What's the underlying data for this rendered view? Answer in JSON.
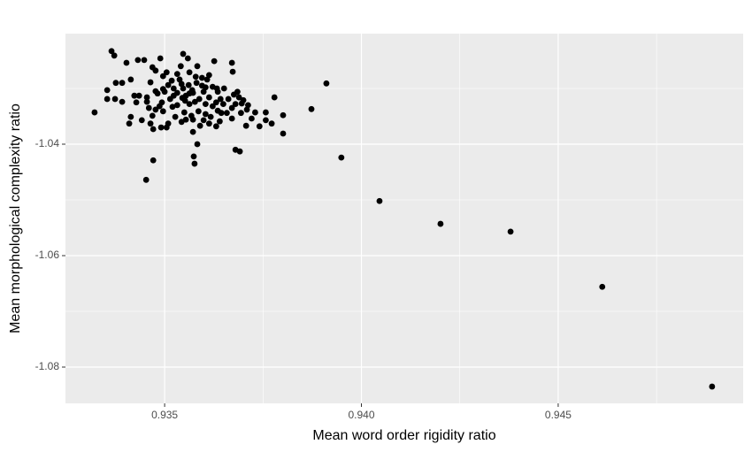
{
  "chart_data": {
    "type": "scatter",
    "x_label": "Mean word order rigidity ratio",
    "y_label": "Mean morphological complexity ratio",
    "color": "#000000",
    "xlim": [
      0.93248,
      0.9497
    ],
    "ylim": [
      -1.08651,
      -1.02016
    ],
    "xticks": [
      {
        "value": 0.935,
        "label": "0.935"
      },
      {
        "value": 0.94,
        "label": "0.940"
      },
      {
        "value": 0.945,
        "label": "0.945"
      }
    ],
    "yticks": [
      -1.04,
      -1.06,
      -1.08
    ],
    "grid": true,
    "x": [
      0.93365,
      0.93372,
      0.93403,
      0.93432,
      0.93448,
      0.93489,
      0.93547,
      0.93559,
      0.93541,
      0.93583,
      0.93626,
      0.93671,
      0.93673,
      0.93414,
      0.93354,
      0.93376,
      0.93392,
      0.93374,
      0.93354,
      0.93392,
      0.93423,
      0.93435,
      0.93455,
      0.93464,
      0.93477,
      0.93496,
      0.93496,
      0.93509,
      0.93523,
      0.93532,
      0.93538,
      0.93547,
      0.93561,
      0.93572,
      0.93581,
      0.93595,
      0.93608,
      0.93613,
      0.93635,
      0.93651,
      0.93662,
      0.93676,
      0.93689,
      0.93696,
      0.937,
      0.93709,
      0.9368,
      0.9373,
      0.93757,
      0.93741,
      0.93721,
      0.93707,
      0.93671,
      0.93644,
      0.93635,
      0.93622,
      0.93604,
      0.93586,
      0.93568,
      0.93554,
      0.93543,
      0.93527,
      0.93509,
      0.93496,
      0.93487,
      0.93477,
      0.93469,
      0.9346,
      0.93442,
      0.93428,
      0.93414,
      0.9341,
      0.93491,
      0.93471,
      0.93505,
      0.9355,
      0.93563,
      0.93572,
      0.9359,
      0.93599,
      0.93613,
      0.93631,
      0.9364,
      0.93658,
      0.93588,
      0.93599,
      0.93622,
      0.93642,
      0.93552,
      0.93532,
      0.93514,
      0.935,
      0.93482,
      0.93455,
      0.93493,
      0.9352,
      0.93532,
      0.93554,
      0.93577,
      0.93613,
      0.93631,
      0.93671,
      0.93694,
      0.93604,
      0.93617,
      0.9357,
      0.93543,
      0.93518,
      0.93505,
      0.93477,
      0.93469,
      0.93579,
      0.93563,
      0.93604,
      0.93563,
      0.93595,
      0.93523,
      0.93545,
      0.93572,
      0.93633,
      0.93649,
      0.93685,
      0.93757,
      0.93772,
      0.93712,
      0.93464,
      0.93322,
      0.93453,
      0.93471,
      0.93574,
      0.93576,
      0.9368,
      0.93691,
      0.93583,
      0.93779,
      0.93801,
      0.93801,
      0.93873,
      0.93911,
      0.93949,
      0.94046,
      0.94201,
      0.94379,
      0.94612,
      0.94891
    ],
    "y": [
      -1.0233,
      -1.0241,
      -1.0254,
      -1.0249,
      -1.0249,
      -1.0246,
      -1.0238,
      -1.0246,
      -1.026,
      -1.026,
      -1.0251,
      -1.0254,
      -1.027,
      -1.0284,
      -1.0303,
      -1.029,
      -1.029,
      -1.0319,
      -1.0319,
      -1.0324,
      -1.0313,
      -1.0313,
      -1.0316,
      -1.0289,
      -1.0305,
      -1.0278,
      -1.0301,
      -1.0294,
      -1.0313,
      -1.0274,
      -1.0284,
      -1.03,
      -1.0294,
      -1.0308,
      -1.029,
      -1.0281,
      -1.0284,
      -1.0276,
      -1.0306,
      -1.03,
      -1.0319,
      -1.0311,
      -1.0316,
      -1.0327,
      -1.0321,
      -1.0338,
      -1.0328,
      -1.0343,
      -1.0343,
      -1.0368,
      -1.0354,
      -1.0367,
      -1.0354,
      -1.0344,
      -1.034,
      -1.0332,
      -1.0328,
      -1.0341,
      -1.0349,
      -1.0356,
      -1.036,
      -1.0351,
      -1.0363,
      -1.0341,
      -1.0332,
      -1.0338,
      -1.0349,
      -1.0335,
      -1.0357,
      -1.0325,
      -1.0351,
      -1.0363,
      -1.037,
      -1.0373,
      -1.037,
      -1.0343,
      -1.0328,
      -1.0378,
      -1.0367,
      -1.0357,
      -1.0363,
      -1.0368,
      -1.0359,
      -1.0344,
      -1.0319,
      -1.0306,
      -1.0297,
      -1.0319,
      -1.0322,
      -1.033,
      -1.0319,
      -1.0306,
      -1.0309,
      -1.0324,
      -1.0325,
      -1.0333,
      -1.0308,
      -1.0313,
      -1.0324,
      -1.0316,
      -1.0325,
      -1.0335,
      -1.0344,
      -1.0346,
      -1.0351,
      -1.0303,
      -1.0292,
      -1.0286,
      -1.0271,
      -1.0268,
      -1.0262,
      -1.0279,
      -1.0271,
      -1.0298,
      -1.0309,
      -1.0295,
      -1.03,
      -1.0317,
      -1.0356,
      -1.03,
      -1.0328,
      -1.0306,
      -1.0357,
      -1.0363,
      -1.033,
      -1.0363,
      -1.0343,
      -1.0464,
      -1.0429,
      -1.0422,
      -1.0435,
      -1.041,
      -1.0413,
      -1.04,
      -1.0316,
      -1.0348,
      -1.0381,
      -1.0337,
      -1.0291,
      -1.0424,
      -1.0502,
      -1.0543,
      -1.0557,
      -1.0656,
      -1.0835
    ]
  }
}
